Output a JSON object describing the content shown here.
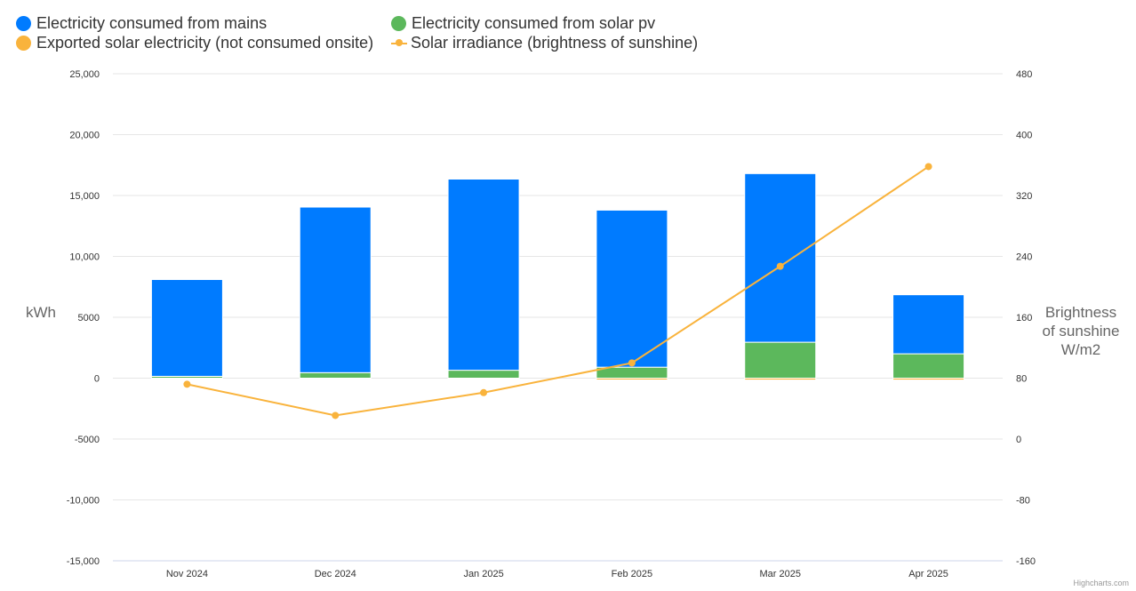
{
  "legend": {
    "mains": "Electricity consumed from mains",
    "solar_pv": "Electricity consumed from solar pv",
    "exported": "Exported solar electricity (not consumed onsite)",
    "irradiance": "Solar irradiance (brightness of sunshine)"
  },
  "credits": "Highcharts.com",
  "colors": {
    "mains": "#007bff",
    "solar_pv": "#5cb85c",
    "exported": "#f9b33c",
    "irradiance": "#f9b33c",
    "grid": "#e6e6e6",
    "text": "#333333",
    "axis_title": "#666666"
  },
  "chart_data": {
    "type": "bar",
    "stacked": true,
    "categories": [
      "Nov 2024",
      "Dec 2024",
      "Jan 2025",
      "Feb 2025",
      "Mar 2025",
      "Apr 2025"
    ],
    "ylabel": "kWh",
    "y2label": [
      "Brightness",
      "of sunshine",
      "W/m2"
    ],
    "ylim": [
      -15000,
      25000
    ],
    "y2lim": [
      -160,
      480
    ],
    "yticks": [
      "-15,000",
      "-10,000",
      "-5000",
      "0",
      "5000",
      "10,000",
      "15,000",
      "20,000",
      "25,000"
    ],
    "y2ticks": [
      "-160",
      "-80",
      "0",
      "80",
      "160",
      "240",
      "320",
      "400",
      "480"
    ],
    "grid": true,
    "legend_position": "top-left",
    "series": [
      {
        "name": "Electricity consumed from solar pv",
        "axis": "left",
        "type": "bar",
        "values": [
          150,
          450,
          650,
          900,
          2950,
          2000
        ]
      },
      {
        "name": "Electricity consumed from mains",
        "axis": "left",
        "type": "bar",
        "values": [
          7950,
          13600,
          15700,
          12900,
          13850,
          4850
        ]
      },
      {
        "name": "Exported solar electricity (not consumed onsite)",
        "axis": "left",
        "type": "bar",
        "values": [
          0,
          0,
          0,
          -100,
          -150,
          -150
        ]
      },
      {
        "name": "Solar irradiance (brightness of sunshine)",
        "axis": "right",
        "type": "line",
        "values": [
          72,
          31,
          61,
          100,
          227,
          358
        ]
      }
    ]
  }
}
